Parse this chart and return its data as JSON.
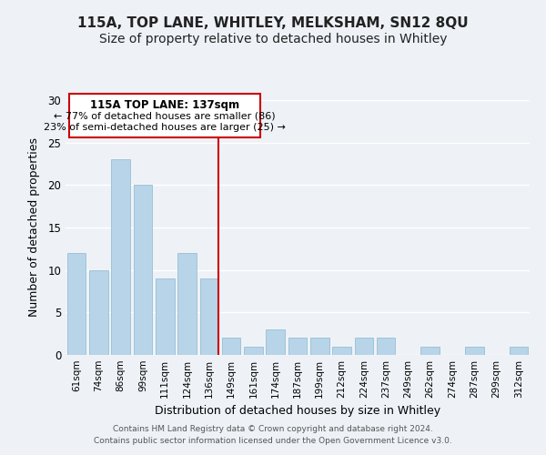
{
  "title": "115A, TOP LANE, WHITLEY, MELKSHAM, SN12 8QU",
  "subtitle": "Size of property relative to detached houses in Whitley",
  "xlabel": "Distribution of detached houses by size in Whitley",
  "ylabel": "Number of detached properties",
  "bar_labels": [
    "61sqm",
    "74sqm",
    "86sqm",
    "99sqm",
    "111sqm",
    "124sqm",
    "136sqm",
    "149sqm",
    "161sqm",
    "174sqm",
    "187sqm",
    "199sqm",
    "212sqm",
    "224sqm",
    "237sqm",
    "249sqm",
    "262sqm",
    "274sqm",
    "287sqm",
    "299sqm",
    "312sqm"
  ],
  "bar_values": [
    12,
    10,
    23,
    20,
    9,
    12,
    9,
    2,
    1,
    3,
    2,
    2,
    1,
    2,
    2,
    0,
    1,
    0,
    1,
    0,
    1
  ],
  "bar_color": "#b8d4e8",
  "bar_edge_color": "#a0c4d8",
  "vline_x_index": 6,
  "vline_color": "#cc0000",
  "annotation_title": "115A TOP LANE: 137sqm",
  "annotation_line1": "← 77% of detached houses are smaller (86)",
  "annotation_line2": "23% of semi-detached houses are larger (25) →",
  "annotation_box_color": "#ffffff",
  "annotation_box_edge": "#cc0000",
  "ylim": [
    0,
    30
  ],
  "yticks": [
    0,
    5,
    10,
    15,
    20,
    25,
    30
  ],
  "footer1": "Contains HM Land Registry data © Crown copyright and database right 2024.",
  "footer2": "Contains public sector information licensed under the Open Government Licence v3.0.",
  "bg_color": "#eef2f7",
  "grid_color": "#ffffff",
  "title_fontsize": 11,
  "subtitle_fontsize": 10
}
